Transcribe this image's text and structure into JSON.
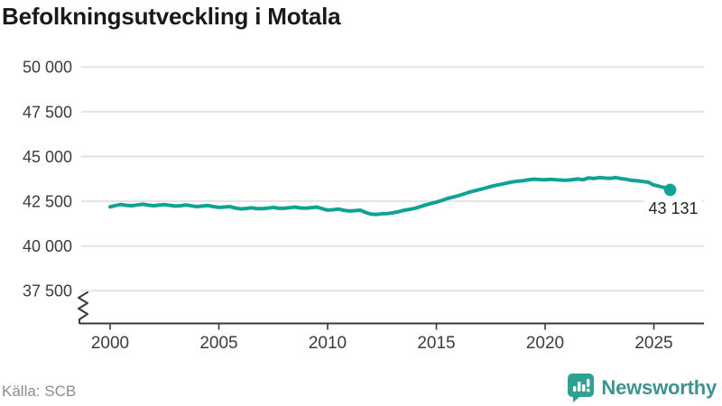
{
  "title": "Befolkningsutveckling i Motala",
  "source": "Källa: SCB",
  "branding": {
    "name": "Newsworthy",
    "icon": "newsworthy-speech-bubble-chart-icon"
  },
  "colors": {
    "line": "#10A394",
    "marker": "#10A394",
    "grid": "#E4E4E4",
    "axis": "#3A3A3A",
    "tick_text": "#3C3C3C",
    "title_text": "#191919",
    "muted_text": "#8C8C8C",
    "brand_teal": "#3E948D",
    "brand_icon_teal": "#2FA193"
  },
  "chart_data": {
    "type": "line",
    "title": "Befolkningsutveckling i Motala",
    "xlabel": "",
    "ylabel": "",
    "legend": "none",
    "grid": "horizontal",
    "axis_break_bottom_left": true,
    "xlim": [
      1998.7,
      2027.3
    ],
    "ylim": [
      37500,
      50000
    ],
    "x_ticks": [
      2000,
      2005,
      2010,
      2015,
      2020,
      2025
    ],
    "x_tick_labels": [
      "2000",
      "2005",
      "2010",
      "2015",
      "2020",
      "2025"
    ],
    "y_ticks": [
      50000,
      47500,
      45000,
      42500,
      40000,
      37500
    ],
    "y_tick_labels": [
      "50 000",
      "47 500",
      "45 000",
      "42 500",
      "40 000",
      "37 500"
    ],
    "series": [
      {
        "name": "Befolkning i Motala",
        "last_value": 43131,
        "last_label": "43 131",
        "points": [
          [
            2000.0,
            42180
          ],
          [
            2000.25,
            42260
          ],
          [
            2000.5,
            42320
          ],
          [
            2000.75,
            42270
          ],
          [
            2001.0,
            42250
          ],
          [
            2001.25,
            42290
          ],
          [
            2001.5,
            42330
          ],
          [
            2001.75,
            42280
          ],
          [
            2002.0,
            42250
          ],
          [
            2002.25,
            42280
          ],
          [
            2002.5,
            42310
          ],
          [
            2002.75,
            42270
          ],
          [
            2003.0,
            42230
          ],
          [
            2003.25,
            42250
          ],
          [
            2003.5,
            42290
          ],
          [
            2003.75,
            42240
          ],
          [
            2004.0,
            42200
          ],
          [
            2004.25,
            42230
          ],
          [
            2004.5,
            42260
          ],
          [
            2004.75,
            42200
          ],
          [
            2005.0,
            42150
          ],
          [
            2005.25,
            42170
          ],
          [
            2005.5,
            42200
          ],
          [
            2005.75,
            42120
          ],
          [
            2006.0,
            42070
          ],
          [
            2006.25,
            42090
          ],
          [
            2006.5,
            42130
          ],
          [
            2006.75,
            42080
          ],
          [
            2007.0,
            42080
          ],
          [
            2007.25,
            42110
          ],
          [
            2007.5,
            42150
          ],
          [
            2007.75,
            42100
          ],
          [
            2008.0,
            42100
          ],
          [
            2008.25,
            42130
          ],
          [
            2008.5,
            42170
          ],
          [
            2008.75,
            42120
          ],
          [
            2009.0,
            42110
          ],
          [
            2009.25,
            42140
          ],
          [
            2009.5,
            42170
          ],
          [
            2009.75,
            42080
          ],
          [
            2010.0,
            42000
          ],
          [
            2010.25,
            42020
          ],
          [
            2010.5,
            42060
          ],
          [
            2010.75,
            41990
          ],
          [
            2011.0,
            41950
          ],
          [
            2011.25,
            41970
          ],
          [
            2011.5,
            42000
          ],
          [
            2011.75,
            41870
          ],
          [
            2012.0,
            41780
          ],
          [
            2012.25,
            41760
          ],
          [
            2012.5,
            41800
          ],
          [
            2012.75,
            41810
          ],
          [
            2013.0,
            41850
          ],
          [
            2013.25,
            41910
          ],
          [
            2013.5,
            41990
          ],
          [
            2013.75,
            42040
          ],
          [
            2014.0,
            42100
          ],
          [
            2014.25,
            42190
          ],
          [
            2014.5,
            42290
          ],
          [
            2014.75,
            42370
          ],
          [
            2015.0,
            42450
          ],
          [
            2015.25,
            42540
          ],
          [
            2015.5,
            42650
          ],
          [
            2015.75,
            42720
          ],
          [
            2016.0,
            42800
          ],
          [
            2016.25,
            42900
          ],
          [
            2016.5,
            43000
          ],
          [
            2016.75,
            43080
          ],
          [
            2017.0,
            43150
          ],
          [
            2017.25,
            43230
          ],
          [
            2017.5,
            43320
          ],
          [
            2017.75,
            43390
          ],
          [
            2018.0,
            43450
          ],
          [
            2018.25,
            43520
          ],
          [
            2018.5,
            43580
          ],
          [
            2018.75,
            43620
          ],
          [
            2019.0,
            43650
          ],
          [
            2019.25,
            43700
          ],
          [
            2019.5,
            43730
          ],
          [
            2019.75,
            43710
          ],
          [
            2020.0,
            43700
          ],
          [
            2020.25,
            43720
          ],
          [
            2020.5,
            43700
          ],
          [
            2020.75,
            43680
          ],
          [
            2021.0,
            43670
          ],
          [
            2021.25,
            43700
          ],
          [
            2021.5,
            43740
          ],
          [
            2021.75,
            43700
          ],
          [
            2022.0,
            43800
          ],
          [
            2022.25,
            43770
          ],
          [
            2022.5,
            43820
          ],
          [
            2022.75,
            43790
          ],
          [
            2023.0,
            43780
          ],
          [
            2023.25,
            43820
          ],
          [
            2023.5,
            43760
          ],
          [
            2023.75,
            43720
          ],
          [
            2024.0,
            43660
          ],
          [
            2024.25,
            43640
          ],
          [
            2024.5,
            43600
          ],
          [
            2024.75,
            43560
          ],
          [
            2025.0,
            43400
          ],
          [
            2025.25,
            43330
          ],
          [
            2025.5,
            43250
          ],
          [
            2025.75,
            43131
          ]
        ]
      }
    ]
  }
}
